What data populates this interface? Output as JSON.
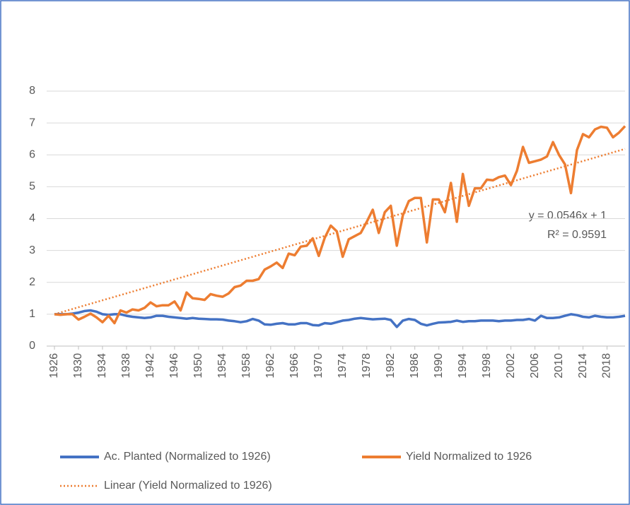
{
  "chart_data": {
    "type": "line",
    "categories": [
      "1926",
      null,
      null,
      null,
      "1930",
      null,
      null,
      null,
      "1934",
      null,
      null,
      null,
      "1938",
      null,
      null,
      null,
      "1942",
      null,
      null,
      null,
      "1946",
      null,
      null,
      null,
      "1950",
      null,
      null,
      null,
      "1954",
      null,
      null,
      null,
      "1958",
      null,
      null,
      null,
      "1962",
      null,
      null,
      null,
      "1966",
      null,
      null,
      null,
      "1970",
      null,
      null,
      null,
      "1974",
      null,
      null,
      null,
      "1978",
      null,
      null,
      null,
      "1982",
      null,
      null,
      null,
      "1986",
      null,
      null,
      null,
      "1990",
      null,
      null,
      null,
      "1994",
      null,
      null,
      null,
      "1998",
      null,
      null,
      null,
      "2002",
      null,
      null,
      null,
      "2006",
      null,
      null,
      null,
      "2010",
      null,
      null,
      null,
      "2014",
      null,
      null,
      null,
      "2018",
      null,
      null,
      null
    ],
    "series": [
      {
        "name": "Ac. Planted (Normalized to 1926)",
        "color": "#4472c4",
        "values": [
          1.0,
          1.0,
          1.0,
          1.02,
          1.05,
          1.1,
          1.12,
          1.08,
          1.0,
          0.98,
          1.0,
          1.0,
          0.95,
          0.92,
          0.9,
          0.88,
          0.9,
          0.95,
          0.95,
          0.92,
          0.9,
          0.88,
          0.86,
          0.88,
          0.86,
          0.85,
          0.84,
          0.84,
          0.83,
          0.8,
          0.78,
          0.75,
          0.78,
          0.85,
          0.8,
          0.68,
          0.67,
          0.7,
          0.72,
          0.68,
          0.68,
          0.72,
          0.72,
          0.66,
          0.65,
          0.72,
          0.7,
          0.75,
          0.8,
          0.82,
          0.86,
          0.88,
          0.86,
          0.84,
          0.85,
          0.86,
          0.82,
          0.6,
          0.8,
          0.85,
          0.82,
          0.7,
          0.65,
          0.7,
          0.74,
          0.75,
          0.76,
          0.8,
          0.76,
          0.78,
          0.78,
          0.8,
          0.8,
          0.8,
          0.78,
          0.8,
          0.8,
          0.82,
          0.82,
          0.85,
          0.8,
          0.95,
          0.88,
          0.88,
          0.9,
          0.95,
          1.0,
          0.97,
          0.92,
          0.9,
          0.95,
          0.92,
          0.9,
          0.9,
          0.92,
          0.95
        ]
      },
      {
        "name": "Yield Normalized to 1926",
        "color": "#ed7d31",
        "values": [
          1.0,
          0.98,
          1.0,
          1.0,
          0.83,
          0.92,
          1.02,
          0.9,
          0.75,
          0.95,
          0.72,
          1.12,
          1.05,
          1.15,
          1.12,
          1.2,
          1.37,
          1.25,
          1.28,
          1.28,
          1.4,
          1.12,
          1.68,
          1.5,
          1.48,
          1.45,
          1.63,
          1.58,
          1.55,
          1.65,
          1.85,
          1.9,
          2.05,
          2.05,
          2.1,
          2.4,
          2.5,
          2.62,
          2.45,
          2.9,
          2.85,
          3.12,
          3.15,
          3.38,
          2.83,
          3.4,
          3.78,
          3.6,
          2.8,
          3.35,
          3.45,
          3.55,
          3.9,
          4.28,
          3.55,
          4.2,
          4.4,
          3.15,
          4.1,
          4.55,
          4.65,
          4.65,
          3.25,
          4.6,
          4.6,
          4.2,
          5.12,
          3.9,
          5.4,
          4.4,
          4.95,
          4.95,
          5.22,
          5.2,
          5.3,
          5.35,
          5.05,
          5.5,
          6.25,
          5.75,
          5.8,
          5.85,
          5.95,
          6.4,
          6.0,
          5.7,
          4.8,
          6.15,
          6.65,
          6.55,
          6.8,
          6.88,
          6.85,
          6.55,
          6.7,
          6.9
        ]
      }
    ],
    "trendline": {
      "name": "Linear (Yield Normalized to 1926)",
      "color": "#ed7d31",
      "slope": 0.0546,
      "intercept": 1
    },
    "annotations": [
      "y = 0.0546x + 1",
      "R² = 0.9591"
    ],
    "ylim": [
      0,
      8
    ],
    "yticks": [
      0,
      1,
      2,
      3,
      4,
      5,
      6,
      7,
      8
    ],
    "grid": true
  }
}
